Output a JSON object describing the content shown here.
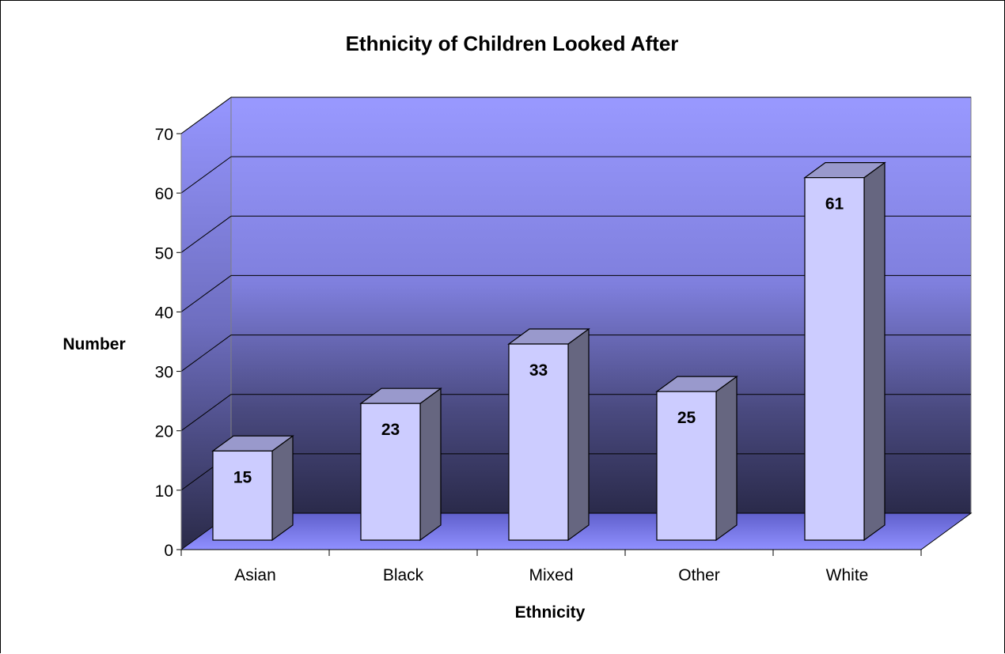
{
  "chart_data": {
    "type": "bar",
    "title": "Ethnicity of Children Looked After",
    "xlabel": "Ethnicity",
    "ylabel": "Number",
    "categories": [
      "Asian",
      "Black",
      "Mixed",
      "Other",
      "White"
    ],
    "values": [
      15,
      23,
      33,
      25,
      61
    ],
    "ylim": [
      0,
      70
    ],
    "yticks": [
      "0",
      "10",
      "20",
      "30",
      "40",
      "50",
      "60",
      "70"
    ],
    "grid": true,
    "legend": "none",
    "style": "3d",
    "colors": {
      "bar_front": "#ccccff",
      "bar_top": "#9999cc",
      "bar_side": "#666680",
      "wall_top": "#9999ff",
      "wall_bottom": "#2a2a4a",
      "floor": "#8080ff"
    }
  }
}
